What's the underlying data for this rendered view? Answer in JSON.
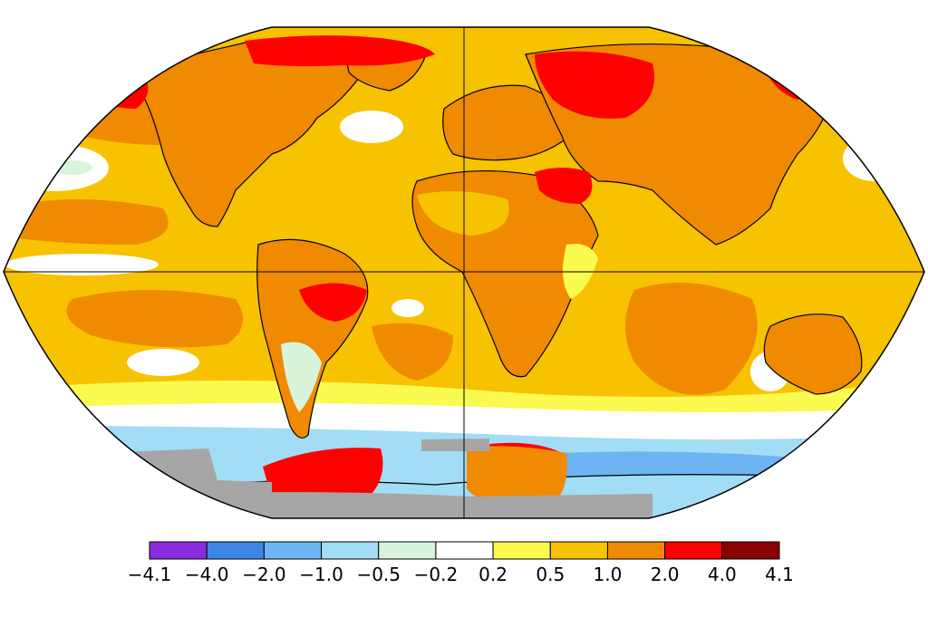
{
  "map": {
    "ocean_base": "#f7c200",
    "land_base": "#f08a00",
    "outline_color": "#000000",
    "missing_data_color": "#a6a6a6"
  },
  "legend": {
    "colors": [
      "#8a2be2",
      "#3b86e6",
      "#6cb4f2",
      "#a3dcf5",
      "#d8f5dc",
      "#ffffff",
      "#fafa50",
      "#f7c200",
      "#f08a00",
      "#ff0000",
      "#8b0000"
    ],
    "labels": [
      "−4.1",
      "−4.0",
      "−2.0",
      "−1.0",
      "−0.5",
      "−0.2",
      "0.2",
      "0.5",
      "1.0",
      "2.0",
      "4.0",
      "4.1"
    ]
  }
}
